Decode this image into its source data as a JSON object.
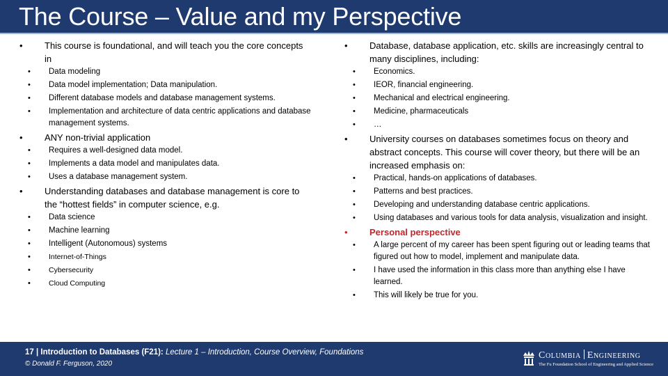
{
  "title": "The Course – Value and my Perspective",
  "colors": {
    "header_bg": "#1f3a6e",
    "accent_red": "#c0262b"
  },
  "left": [
    {
      "text": "This course is foundational, and will teach you the core concepts in",
      "sub": [
        "Data modeling",
        "Data model implementation; Data manipulation.",
        "Different database models and database management systems.",
        "Implementation and architecture of data centric applications and database management systems."
      ]
    },
    {
      "text": "ANY non-trivial application",
      "sub": [
        "Requires a well-designed data model.",
        "Implements a data model and manipulates data.",
        "Uses a database management system."
      ]
    },
    {
      "text": "Understanding databases and database management is core to the “hottest fields” in computer science, e.g.",
      "sub": [
        "Data science",
        "Machine learning",
        "Intelligent (Autonomous) systems"
      ],
      "sub_small": [
        "Internet-of-Things",
        "Cybersecurity",
        "Cloud Computing"
      ]
    }
  ],
  "right": [
    {
      "text": "Database, database application, etc. skills are increasingly central to many disciplines, including:",
      "sub": [
        "Economics.",
        "IEOR, financial engineering.",
        "Mechanical and electrical engineering.",
        "Medicine, pharmaceuticals",
        "…"
      ]
    },
    {
      "text": "University courses on databases sometimes focus on theory and abstract concepts. This course will cover theory, but there will be an increased emphasis on:",
      "sub": [
        "Practical, hands-on applications of databases.",
        "Patterns and best practices.",
        "Developing and understanding database centric applications.",
        "Using databases and various tools for data analysis, visualization and insight."
      ]
    },
    {
      "text": "Personal perspective",
      "highlight": true,
      "sub": [
        "A large percent of my career has been spent figuring out or leading teams that figured out how to model, implement and manipulate data.",
        "I have used the information in this class more than anything else I have learned.",
        "This will likely be true for you."
      ]
    }
  ],
  "footer": {
    "page": "17",
    "separator": " | ",
    "course": "Introduction to Databases (F21):",
    "lecture": " Lecture 1 – Introduction, Course Overview, Foundations",
    "copyright": "© Donald F. Ferguson, 2020"
  },
  "logo": {
    "left": "Columbia",
    "right": "Engineering",
    "school": "The Fu Foundation School of Engineering and Applied Science"
  }
}
